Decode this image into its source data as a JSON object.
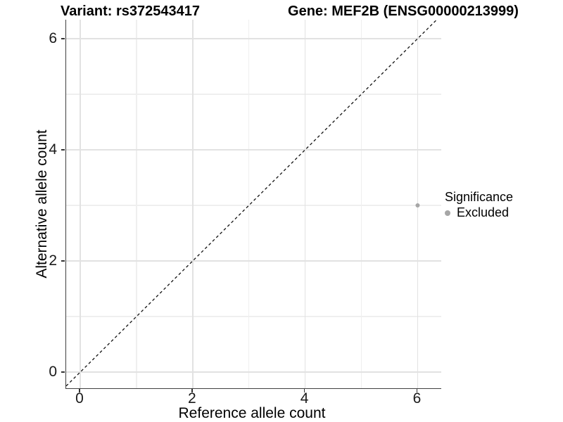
{
  "titles": {
    "left": "Variant: rs372543417",
    "right": "Gene: MEF2B (ENSG00000213999)"
  },
  "legend": {
    "title": "Significance",
    "entries": [
      {
        "label": "Excluded",
        "color": "#a6a6a6"
      }
    ]
  },
  "chart_data": {
    "type": "scatter",
    "title_left": "Variant: rs372543417",
    "title_right": "Gene: MEF2B (ENSG00000213999)",
    "xlabel": "Reference allele count",
    "ylabel": "Alternative allele count",
    "xlim": [
      -0.25,
      6.42
    ],
    "ylim": [
      -0.29,
      6.34
    ],
    "x_ticks": [
      0,
      2,
      4,
      6
    ],
    "y_ticks": [
      0,
      2,
      4,
      6
    ],
    "x_minor": [
      1,
      3,
      5
    ],
    "y_minor": [
      1,
      3,
      5
    ],
    "grid": true,
    "legend_position": "right",
    "reference_line": {
      "kind": "identity",
      "style": "dashed",
      "color": "#111111"
    },
    "series": [
      {
        "name": "Excluded",
        "color": "#a6a6a6",
        "point_radius": 3,
        "points": [
          {
            "x": 6,
            "y": 3
          }
        ]
      }
    ]
  }
}
